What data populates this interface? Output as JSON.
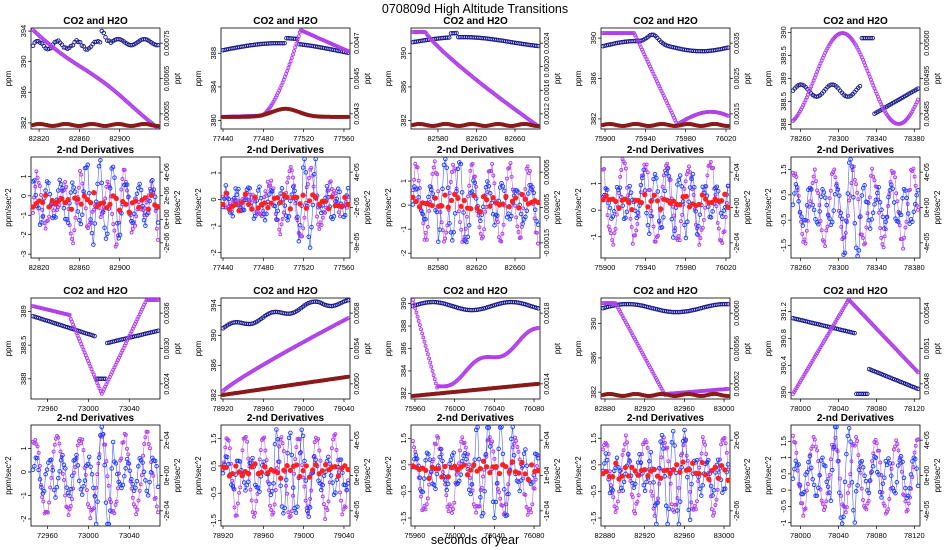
{
  "figure": {
    "title": "070809d   High Altitude Transitions",
    "xlabel": "seconds of year",
    "colors": {
      "co2": "#1a1a8c",
      "h2o": "#9b30ff",
      "h2o_marker": "#b040e8",
      "ref": "#8b1a1a",
      "deriv_red": "#ff2020",
      "deriv_blue": "#1a3aff"
    }
  },
  "chart_data": [
    {
      "type": "scatter",
      "title": "CO2 and H2O",
      "ylabel": "ppm",
      "y2label": "ppt",
      "xlim": [
        82812,
        82940
      ],
      "xticks": [
        82820,
        82860,
        82900
      ],
      "ylim": [
        381.2,
        394.4
      ],
      "yticks": [
        382,
        386,
        390,
        394
      ],
      "y2ticks": [
        "0.00055",
        "0.00065",
        "0.00075"
      ],
      "series": [
        {
          "name": "CO2",
          "shape": "co2a"
        },
        {
          "name": "H2O",
          "shape": "h2oa"
        },
        {
          "name": "ref",
          "shape": "flatlow"
        }
      ]
    },
    {
      "type": "scatter",
      "title": "CO2 and H2O",
      "ylabel": "ppm",
      "y2label": "ppt",
      "xlim": [
        77438,
        77566
      ],
      "xticks": [
        77440,
        77480,
        77520,
        77560
      ],
      "ylim": [
        379,
        391
      ],
      "yticks": [
        380,
        384,
        388
      ],
      "y2ticks": [
        "0.0043",
        "0.0045",
        "0.0047"
      ],
      "series": [
        {
          "name": "CO2",
          "shape": "co2b"
        },
        {
          "name": "H2O",
          "shape": "h2ob"
        },
        {
          "name": "ref",
          "shape": "bumplow"
        }
      ]
    },
    {
      "type": "scatter",
      "title": "CO2 and H2O",
      "ylabel": "ppm",
      "y2label": "ppt",
      "xlim": [
        82552,
        82686
      ],
      "xticks": [
        82580,
        82620,
        82660
      ],
      "ylim": [
        381,
        393
      ],
      "yticks": [
        382,
        386,
        390
      ],
      "y2ticks": [
        "0.0012",
        "0.0016",
        "0.0020",
        "0.0024"
      ],
      "series": [
        {
          "name": "CO2",
          "shape": "co2c"
        },
        {
          "name": "H2O",
          "shape": "h2oc"
        },
        {
          "name": "ref",
          "shape": "flatlow"
        }
      ]
    },
    {
      "type": "scatter",
      "title": "CO2 and H2O",
      "ylabel": "ppm",
      "y2label": "ppt",
      "xlim": [
        75896,
        76024
      ],
      "xticks": [
        75900,
        75940,
        75980,
        76020
      ],
      "ylim": [
        381,
        391
      ],
      "yticks": [
        382,
        386,
        390
      ],
      "y2ticks": [
        "0.0015",
        "0.0025",
        "0.0035"
      ],
      "series": [
        {
          "name": "CO2",
          "shape": "co2d"
        },
        {
          "name": "H2O",
          "shape": "h2od"
        },
        {
          "name": "ref",
          "shape": "flatlow"
        }
      ]
    },
    {
      "type": "scatter",
      "title": "CO2 and H2O",
      "ylabel": "ppm",
      "y2label": "ppt",
      "xlim": [
        78250,
        78386
      ],
      "xticks": [
        78260,
        78300,
        78340,
        78380
      ],
      "ylim": [
        387.9,
        390.1
      ],
      "yticks": [
        388.0,
        388.5,
        389.0,
        389.5,
        390.0
      ],
      "y2ticks": [
        "0.00485",
        "0.00495",
        "0.00500"
      ],
      "series": [
        {
          "name": "CO2",
          "shape": "co2e"
        },
        {
          "name": "H2O",
          "shape": "h2oe"
        }
      ]
    },
    {
      "type": "scatter",
      "title": "2-nd Derivatives",
      "ylabel": "ppm/sec^2",
      "y2label": "ppt/sec^2",
      "xlim": [
        82812,
        82940
      ],
      "xticks": [
        82820,
        82860,
        82900
      ],
      "ylim": [
        -3.2,
        2.0
      ],
      "yticks": [
        -3,
        -2,
        -1,
        0,
        1
      ],
      "y2ticks": [
        "-2e-06",
        "0e+00",
        "2e-06",
        "4e-06"
      ],
      "series": [
        {
          "name": "H2O",
          "shape": "d1"
        },
        {
          "name": "CO2",
          "shape": "d2"
        },
        {
          "name": "ref",
          "shape": "dred"
        }
      ]
    },
    {
      "type": "scatter",
      "title": "2-nd Derivatives",
      "ylabel": "ppm/sec^2",
      "y2label": "ppt/sec^2",
      "xlim": [
        77438,
        77566
      ],
      "xticks": [
        77440,
        77480,
        77520,
        77560
      ],
      "ylim": [
        -2.2,
        1.6
      ],
      "yticks": [
        -2.0,
        -1.0,
        0.0,
        1.0
      ],
      "y2ticks": [
        "-8e-05",
        "-2e-05",
        "4e-05"
      ],
      "series": [
        {
          "name": "H2O",
          "shape": "d3"
        },
        {
          "name": "CO2",
          "shape": "d4"
        },
        {
          "name": "ref",
          "shape": "dred"
        }
      ]
    },
    {
      "type": "scatter",
      "title": "2-nd Derivatives",
      "ylabel": "ppm/sec^2",
      "y2label": "ppt/sec^2",
      "xlim": [
        82552,
        82686
      ],
      "xticks": [
        82580,
        82620,
        82660
      ],
      "ylim": [
        -2.2,
        2.0
      ],
      "yticks": [
        -2.0,
        -1.0,
        0.0,
        1.0
      ],
      "y2ticks": [
        "-0.00015",
        "-0.00005",
        "0.00005"
      ],
      "series": [
        {
          "name": "H2O",
          "shape": "d5"
        },
        {
          "name": "CO2",
          "shape": "d6"
        },
        {
          "name": "ref",
          "shape": "dred"
        }
      ]
    },
    {
      "type": "scatter",
      "title": "2-nd Derivatives",
      "ylabel": "ppm/sec^2",
      "y2label": "ppt/sec^2",
      "xlim": [
        75896,
        76024
      ],
      "xticks": [
        75900,
        75940,
        75980,
        76020
      ],
      "ylim": [
        -1.8,
        2.0
      ],
      "yticks": [
        -1,
        0,
        1
      ],
      "y2ticks": [
        "-2e-04",
        "0e+00",
        "2e-04"
      ],
      "series": [
        {
          "name": "H2O",
          "shape": "d7"
        },
        {
          "name": "CO2",
          "shape": "d8"
        },
        {
          "name": "ref",
          "shape": "dred"
        }
      ]
    },
    {
      "type": "scatter",
      "title": "2-nd Derivatives",
      "ylabel": "ppm/sec^2",
      "y2label": "ppt/sec^2",
      "xlim": [
        78250,
        78386
      ],
      "xticks": [
        78260,
        78300,
        78340,
        78380
      ],
      "ylim": [
        -2.0,
        2.0
      ],
      "yticks": [
        -1.5,
        -0.5,
        0.5,
        1.5
      ],
      "y2ticks": [
        "-4e-05",
        "0e+00",
        "4e-05"
      ],
      "series": [
        {
          "name": "H2O",
          "shape": "d9"
        },
        {
          "name": "CO2",
          "shape": "d10"
        }
      ]
    },
    {
      "type": "scatter",
      "title": "CO2 and H2O",
      "ylabel": "ppm",
      "y2label": "ppt",
      "xlim": [
        72944,
        73070
      ],
      "xticks": [
        72960,
        73000,
        73040
      ],
      "ylim": [
        387.7,
        389.2
      ],
      "yticks": [
        388.0,
        388.5,
        389.0
      ],
      "y2ticks": [
        "0.0024",
        "0.0030",
        "0.0036"
      ],
      "series": [
        {
          "name": "CO2",
          "shape": "co2f"
        },
        {
          "name": "H2O",
          "shape": "h2of"
        }
      ]
    },
    {
      "type": "scatter",
      "title": "CO2 and H2O",
      "ylabel": "ppm",
      "y2label": "ppt",
      "xlim": [
        78918,
        79046
      ],
      "xticks": [
        78920,
        78960,
        79000,
        79040
      ],
      "ylim": [
        381.5,
        395
      ],
      "yticks": [
        382,
        386,
        390,
        394
      ],
      "y2ticks": [
        "0.0050",
        "0.0054",
        "0.0058"
      ],
      "series": [
        {
          "name": "CO2",
          "shape": "co2g"
        },
        {
          "name": "H2O",
          "shape": "h2og"
        },
        {
          "name": "ref",
          "shape": "riselow"
        }
      ]
    },
    {
      "type": "scatter",
      "title": "CO2 and H2O",
      "ylabel": "ppm",
      "y2label": "ppt",
      "xlim": [
        75956,
        76086
      ],
      "xticks": [
        75960,
        76000,
        76040,
        76080
      ],
      "ylim": [
        381.5,
        390.5
      ],
      "yticks": [
        382,
        384,
        386,
        388,
        390
      ],
      "y2ticks": [
        "0.0014",
        "0.0018"
      ],
      "series": [
        {
          "name": "CO2",
          "shape": "co2h"
        },
        {
          "name": "H2O",
          "shape": "h2oh"
        },
        {
          "name": "ref",
          "shape": "riselow2"
        }
      ]
    },
    {
      "type": "scatter",
      "title": "CO2 and H2O",
      "ylabel": "ppm",
      "y2label": "ppt",
      "xlim": [
        82876,
        83006
      ],
      "xticks": [
        82880,
        82920,
        82960,
        83000
      ],
      "ylim": [
        381.2,
        393
      ],
      "yticks": [
        382,
        386,
        390
      ],
      "y2ticks": [
        "0.00052",
        "0.00056",
        "0.00060"
      ],
      "series": [
        {
          "name": "CO2",
          "shape": "co2i"
        },
        {
          "name": "H2O",
          "shape": "h2oi"
        },
        {
          "name": "ref",
          "shape": "flatlow"
        }
      ]
    },
    {
      "type": "scatter",
      "title": "CO2 and H2O",
      "ylabel": "ppm",
      "y2label": "ppt",
      "xlim": [
        77990,
        78126
      ],
      "xticks": [
        78000,
        78040,
        78080,
        78120
      ],
      "ylim": [
        389.9,
        391.4
      ],
      "yticks": [
        390.0,
        390.4,
        390.8,
        391.2
      ],
      "y2ticks": [
        "0.0048",
        "0.0051",
        "0.0054"
      ],
      "series": [
        {
          "name": "CO2",
          "shape": "co2j"
        },
        {
          "name": "H2O",
          "shape": "h2oj"
        }
      ]
    },
    {
      "type": "scatter",
      "title": "2-nd Derivatives",
      "ylabel": "ppm/sec^2",
      "y2label": "ppt/sec^2",
      "xlim": [
        72944,
        73070
      ],
      "xticks": [
        72960,
        73000,
        73040
      ],
      "ylim": [
        -2.3,
        2.0
      ],
      "yticks": [
        -2,
        -1,
        0,
        1
      ],
      "y2ticks": [
        "-2e-04",
        "0e+00",
        "2e-04"
      ],
      "series": [
        {
          "name": "H2O",
          "shape": "d11"
        },
        {
          "name": "CO2",
          "shape": "d12"
        }
      ]
    },
    {
      "type": "scatter",
      "title": "2-nd Derivatives",
      "ylabel": "ppm/sec^2",
      "y2label": "ppt/sec^2",
      "xlim": [
        78918,
        79046
      ],
      "xticks": [
        78920,
        78960,
        79000,
        79040
      ],
      "ylim": [
        -1.7,
        2.0
      ],
      "yticks": [
        -1.5,
        -0.5,
        0.5,
        1.5
      ],
      "y2ticks": [
        "-4e-05",
        "0e+00",
        "4e-05"
      ],
      "series": [
        {
          "name": "H2O",
          "shape": "d13"
        },
        {
          "name": "CO2",
          "shape": "d14"
        },
        {
          "name": "ref",
          "shape": "dred"
        }
      ]
    },
    {
      "type": "scatter",
      "title": "2-nd Derivatives",
      "ylabel": "ppm/sec^2",
      "y2label": "ppt/sec^2",
      "xlim": [
        75956,
        76086
      ],
      "xticks": [
        75960,
        76000,
        76040,
        76080
      ],
      "ylim": [
        -1.8,
        2.0
      ],
      "yticks": [
        -1.5,
        -0.5,
        0.5,
        1.5
      ],
      "y2ticks": [
        "-1e-04",
        "1e-04",
        "3e-04"
      ],
      "series": [
        {
          "name": "H2O",
          "shape": "d15"
        },
        {
          "name": "CO2",
          "shape": "d16"
        },
        {
          "name": "ref",
          "shape": "dred"
        }
      ]
    },
    {
      "type": "scatter",
      "title": "2-nd Derivatives",
      "ylabel": "ppm/sec^2",
      "y2label": "ppt/sec^2",
      "xlim": [
        82876,
        83006
      ],
      "xticks": [
        82880,
        82920,
        82960,
        83000
      ],
      "ylim": [
        -1.8,
        2.0
      ],
      "yticks": [
        -1.5,
        -0.5,
        0.5,
        1.5
      ],
      "y2ticks": [
        "-2e-06",
        "2e-06"
      ],
      "series": [
        {
          "name": "H2O",
          "shape": "d17"
        },
        {
          "name": "CO2",
          "shape": "d18"
        },
        {
          "name": "ref",
          "shape": "dred"
        }
      ]
    },
    {
      "type": "scatter",
      "title": "2-nd Derivatives",
      "ylabel": "ppm/sec^2",
      "y2label": "ppt/sec^2",
      "xlim": [
        77990,
        78126
      ],
      "xticks": [
        78000,
        78040,
        78080,
        78120
      ],
      "ylim": [
        -1.1,
        2.0
      ],
      "yticks": [
        -1.0,
        -0.5,
        0.0,
        0.5,
        1.0,
        1.5
      ],
      "y2ticks": [
        "-4e-05",
        "0e+00",
        "4e-05"
      ],
      "series": [
        {
          "name": "H2O",
          "shape": "d19"
        },
        {
          "name": "CO2",
          "shape": "d20"
        }
      ]
    }
  ]
}
